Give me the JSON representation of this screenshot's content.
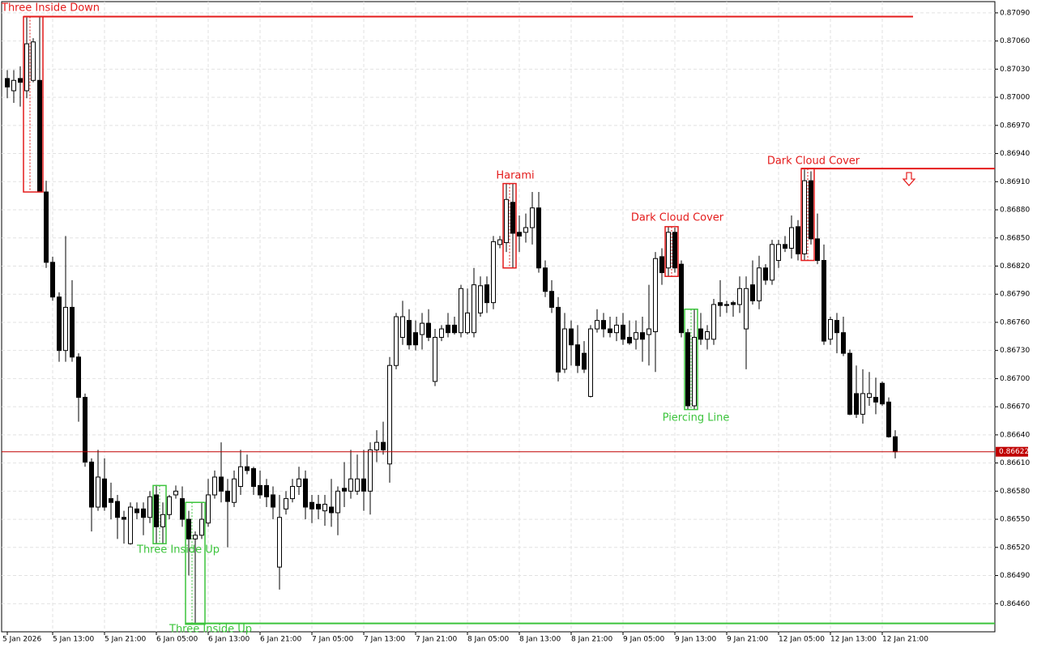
{
  "chart_data": {
    "type": "candlestick",
    "grid": true,
    "up_color": "#ffffff",
    "down_color": "#000000",
    "outline_color": "#000000",
    "current_price": 0.86622,
    "current_price_color": "#c00000",
    "categories": [
      "5 Jan 2026",
      null,
      null,
      null,
      null,
      null,
      null,
      "5 Jan 13:00",
      null,
      null,
      null,
      null,
      null,
      null,
      null,
      "5 Jan 21:00",
      null,
      null,
      null,
      null,
      null,
      null,
      null,
      "6 Jan 05:00",
      null,
      null,
      null,
      null,
      null,
      null,
      null,
      "6 Jan 13:00",
      null,
      null,
      null,
      null,
      null,
      null,
      null,
      "6 Jan 21:00",
      null,
      null,
      null,
      null,
      null,
      null,
      null,
      "7 Jan 05:00",
      null,
      null,
      null,
      null,
      null,
      null,
      null,
      "7 Jan 13:00",
      null,
      null,
      null,
      null,
      null,
      null,
      null,
      "7 Jan 21:00",
      null,
      null,
      null,
      null,
      null,
      null,
      null,
      "8 Jan 05:00",
      null,
      null,
      null,
      null,
      null,
      null,
      null,
      "8 Jan 13:00",
      null,
      null,
      null,
      null,
      null,
      null,
      null,
      "8 Jan 21:00",
      null,
      null,
      null,
      null,
      null,
      null,
      null,
      "9 Jan 05:00",
      null,
      null,
      null,
      null,
      null,
      null,
      null,
      "9 Jan 13:00",
      null,
      null,
      null,
      null,
      null,
      null,
      null,
      "9 Jan 21:00",
      null,
      null,
      null,
      null,
      null,
      null,
      null,
      "12 Jan 05:00",
      null,
      null,
      null,
      null,
      null,
      null,
      null,
      "12 Jan 13:00",
      null,
      null,
      null,
      null,
      null,
      null,
      null,
      "12 Jan 21:00",
      null,
      null
    ],
    "open": [
      0.8702,
      0.87007,
      0.8702,
      0.87007,
      0.87018,
      0.87018,
      0.86899,
      0.86824,
      0.86787,
      0.8673,
      0.86776,
      0.86723,
      0.8668,
      0.86611,
      0.86563,
      0.86593,
      0.86572,
      0.86569,
      0.86552,
      0.86524,
      0.86561,
      0.86561,
      0.86552,
      0.86576,
      0.86542,
      0.86555,
      0.86576,
      0.86572,
      0.8655,
      0.86529,
      0.86533,
      0.86546,
      0.86576,
      0.86595,
      0.8658,
      0.86568,
      0.86585,
      0.86606,
      0.86604,
      0.86586,
      0.86586,
      0.86576,
      0.86499,
      0.86561,
      0.86572,
      0.86585,
      0.86593,
      0.86568,
      0.86566,
      0.86559,
      0.86563,
      0.86557,
      0.86583,
      0.8658,
      0.8658,
      0.86593,
      0.8658,
      0.86624,
      0.86632,
      0.86609,
      0.86714,
      0.86744,
      0.86762,
      0.86749,
      0.86747,
      0.86759,
      0.86697,
      0.86744,
      0.86757,
      0.86757,
      0.86749,
      0.86749,
      0.86749,
      0.8677,
      0.868,
      0.86781,
      0.86843,
      0.86845,
      0.86888,
      0.86856,
      0.86856,
      0.86861,
      0.86882,
      0.86818,
      0.86793,
      0.86776,
      0.8671,
      0.86753,
      0.86736,
      0.86727,
      0.86681,
      0.86753,
      0.86762,
      0.86753,
      0.86749,
      0.86757,
      0.86744,
      0.86742,
      0.86749,
      0.86747,
      0.8675,
      0.8683,
      0.86818,
      0.86856,
      0.86822,
      0.86749,
      0.86671,
      0.86753,
      0.86742,
      0.86742,
      0.86781,
      0.86779,
      0.86781,
      0.86779,
      0.86753,
      0.868,
      0.86783,
      0.86818,
      0.86805,
      0.86826,
      0.86843,
      0.86839,
      0.86862,
      0.86833,
      0.86911,
      0.86849,
      0.86826,
      0.86742,
      0.86762,
      0.86749,
      0.86727,
      0.86684,
      0.86662,
      0.8668,
      0.8668,
      0.86695,
      0.86675,
      0.86638
    ],
    "high": [
      0.87029,
      0.87029,
      0.87033,
      0.87085,
      0.87063,
      0.87086,
      0.86911,
      0.8683,
      0.86792,
      0.86852,
      0.86805,
      0.86727,
      0.86684,
      0.86615,
      0.86624,
      0.86615,
      0.86589,
      0.86576,
      0.86559,
      0.86568,
      0.86568,
      0.86568,
      0.8658,
      0.86586,
      0.86568,
      0.86576,
      0.86586,
      0.86585,
      0.86559,
      0.86537,
      0.86568,
      0.86593,
      0.86602,
      0.86632,
      0.86593,
      0.86602,
      0.86624,
      0.86619,
      0.86606,
      0.86602,
      0.86593,
      0.86585,
      0.86576,
      0.8658,
      0.86593,
      0.86606,
      0.86602,
      0.86576,
      0.86576,
      0.86576,
      0.86593,
      0.86585,
      0.86611,
      0.86624,
      0.86619,
      0.86624,
      0.86632,
      0.86645,
      0.86654,
      0.86723,
      0.8677,
      0.86783,
      0.86774,
      0.86762,
      0.8677,
      0.86774,
      0.86753,
      0.86757,
      0.8677,
      0.86766,
      0.868,
      0.86796,
      0.86818,
      0.86809,
      0.86809,
      0.86852,
      0.86852,
      0.86908,
      0.86908,
      0.86874,
      0.86876,
      0.86899,
      0.86899,
      0.86826,
      0.86805,
      0.86787,
      0.8677,
      0.86762,
      0.86757,
      0.8674,
      0.86757,
      0.86774,
      0.8677,
      0.86766,
      0.86766,
      0.8677,
      0.86762,
      0.86762,
      0.86766,
      0.868,
      0.86835,
      0.86839,
      0.86862,
      0.86861,
      0.86826,
      0.86753,
      0.86774,
      0.8677,
      0.86757,
      0.86785,
      0.86805,
      0.86783,
      0.86783,
      0.86809,
      0.86809,
      0.86826,
      0.86831,
      0.86822,
      0.86848,
      0.86848,
      0.86852,
      0.86874,
      0.86869,
      0.86923,
      0.86921,
      0.86876,
      0.86843,
      0.86766,
      0.8677,
      0.86766,
      0.86731,
      0.86714,
      0.8671,
      0.86707,
      0.86701,
      0.86697,
      0.8668,
      0.86645
    ],
    "low": [
      0.86999,
      0.86994,
      0.8699,
      0.86999,
      0.87016,
      0.86899,
      0.86818,
      0.86783,
      0.86718,
      0.86718,
      0.86718,
      0.86654,
      0.86606,
      0.86537,
      0.86559,
      0.86559,
      0.8655,
      0.86529,
      0.86524,
      0.86523,
      0.8655,
      0.86533,
      0.86546,
      0.86524,
      0.86524,
      0.8655,
      0.86572,
      0.86542,
      0.8649,
      0.86438,
      0.86529,
      0.86542,
      0.86572,
      0.86568,
      0.8652,
      0.86563,
      0.86576,
      0.86598,
      0.86576,
      0.86572,
      0.86563,
      0.8655,
      0.86475,
      0.86555,
      0.86568,
      0.86576,
      0.8655,
      0.86546,
      0.8655,
      0.86543,
      0.86542,
      0.86533,
      0.86563,
      0.86572,
      0.86576,
      0.86559,
      0.86555,
      0.86611,
      0.86619,
      0.86589,
      0.8671,
      0.86736,
      0.86731,
      0.8673,
      0.86731,
      0.8674,
      0.86692,
      0.8674,
      0.86744,
      0.86747,
      0.86744,
      0.86747,
      0.86744,
      0.86766,
      0.8677,
      0.86774,
      0.86839,
      0.86835,
      0.86818,
      0.86835,
      0.86845,
      0.86843,
      0.86813,
      0.86787,
      0.8677,
      0.86697,
      0.86706,
      0.86714,
      0.86706,
      0.86706,
      0.8668,
      0.86749,
      0.86744,
      0.86744,
      0.8674,
      0.86736,
      0.86736,
      0.86731,
      0.86718,
      0.86714,
      0.86707,
      0.868,
      0.86809,
      0.86813,
      0.86744,
      0.86667,
      0.86667,
      0.86736,
      0.86731,
      0.86736,
      0.86766,
      0.8677,
      0.86766,
      0.8677,
      0.8671,
      0.86779,
      0.86774,
      0.868,
      0.868,
      0.86818,
      0.86835,
      0.86828,
      0.86826,
      0.86826,
      0.86843,
      0.86822,
      0.86736,
      0.86736,
      0.86727,
      0.86724,
      0.86661,
      0.86658,
      0.86652,
      0.86671,
      0.86662,
      0.86671,
      0.86637,
      0.86615
    ],
    "close": [
      0.87011,
      0.87018,
      0.87016,
      0.87057,
      0.87059,
      0.86899,
      0.86824,
      0.86787,
      0.8673,
      0.86776,
      0.86723,
      0.8668,
      0.86611,
      0.86563,
      0.86595,
      0.86563,
      0.86568,
      0.86552,
      0.8655,
      0.86563,
      0.86557,
      0.86552,
      0.86574,
      0.86542,
      0.86555,
      0.86574,
      0.8658,
      0.8655,
      0.86529,
      0.86533,
      0.8655,
      0.86576,
      0.86595,
      0.8658,
      0.86569,
      0.86593,
      0.86606,
      0.86602,
      0.86585,
      0.86576,
      0.86574,
      0.86563,
      0.86552,
      0.86572,
      0.86585,
      0.86593,
      0.86563,
      0.86561,
      0.86561,
      0.86566,
      0.86557,
      0.8658,
      0.8658,
      0.86593,
      0.86593,
      0.8658,
      0.86624,
      0.86632,
      0.86624,
      0.86714,
      0.86766,
      0.86766,
      0.86736,
      0.86736,
      0.86759,
      0.86744,
      0.86744,
      0.86753,
      0.86749,
      0.86749,
      0.86796,
      0.8677,
      0.868,
      0.86799,
      0.86781,
      0.86846,
      0.86848,
      0.86891,
      0.86855,
      0.86852,
      0.86861,
      0.86882,
      0.86818,
      0.86793,
      0.86776,
      0.86707,
      0.86753,
      0.86736,
      0.86714,
      0.8671,
      0.86753,
      0.86762,
      0.86753,
      0.86749,
      0.86757,
      0.86742,
      0.86738,
      0.86749,
      0.86742,
      0.86753,
      0.86828,
      0.86813,
      0.86856,
      0.86818,
      0.86749,
      0.86671,
      0.86744,
      0.86742,
      0.8675,
      0.86779,
      0.86778,
      0.86778,
      0.86779,
      0.86796,
      0.86796,
      0.86783,
      0.86818,
      0.86805,
      0.86843,
      0.86843,
      0.86839,
      0.86861,
      0.86833,
      0.86911,
      0.86849,
      0.86826,
      0.8674,
      0.86763,
      0.86749,
      0.86727,
      0.86662,
      0.86662,
      0.86684,
      0.86684,
      0.86675,
      0.86673,
      0.86638,
      0.86622
    ],
    "ylim": [
      0.8643,
      0.87102
    ],
    "yticks": [
      {
        "value": 0.8709,
        "label": "0.87090"
      },
      {
        "value": 0.8706,
        "label": "0.87060"
      },
      {
        "value": 0.8703,
        "label": "0.87030"
      },
      {
        "value": 0.87,
        "label": "0.87000"
      },
      {
        "value": 0.8697,
        "label": "0.86970"
      },
      {
        "value": 0.8694,
        "label": "0.86940"
      },
      {
        "value": 0.8691,
        "label": "0.86910"
      },
      {
        "value": 0.8688,
        "label": "0.86880"
      },
      {
        "value": 0.8685,
        "label": "0.86850"
      },
      {
        "value": 0.8682,
        "label": "0.86820"
      },
      {
        "value": 0.8679,
        "label": "0.86790"
      },
      {
        "value": 0.8676,
        "label": "0.86760"
      },
      {
        "value": 0.8673,
        "label": "0.86730"
      },
      {
        "value": 0.867,
        "label": "0.86700"
      },
      {
        "value": 0.8667,
        "label": "0.86670"
      },
      {
        "value": 0.8664,
        "label": "0.86640"
      },
      {
        "value": 0.8661,
        "label": "0.86610"
      },
      {
        "value": 0.8658,
        "label": "0.86580"
      },
      {
        "value": 0.8655,
        "label": "0.86550"
      },
      {
        "value": 0.8652,
        "label": "0.86520"
      },
      {
        "value": 0.8649,
        "label": "0.86490"
      },
      {
        "value": 0.8646,
        "label": "0.86460"
      }
    ],
    "annotations": [
      {
        "label": "Three Inside Down",
        "color": "#e41b1b",
        "level": 0.87086
      },
      {
        "label": "Three Inside Up",
        "color": "#3cc43c"
      },
      {
        "label": "Three Inside Up",
        "color": "#3cc43c",
        "level": 0.86439
      },
      {
        "label": "Harami",
        "color": "#e41b1b"
      },
      {
        "label": "Dark Cloud Cover",
        "color": "#e41b1b"
      },
      {
        "label": "Piercing Line",
        "color": "#3cc43c"
      },
      {
        "label": "Dark Cloud Cover",
        "color": "#e41b1b",
        "level": 0.86924
      }
    ]
  }
}
